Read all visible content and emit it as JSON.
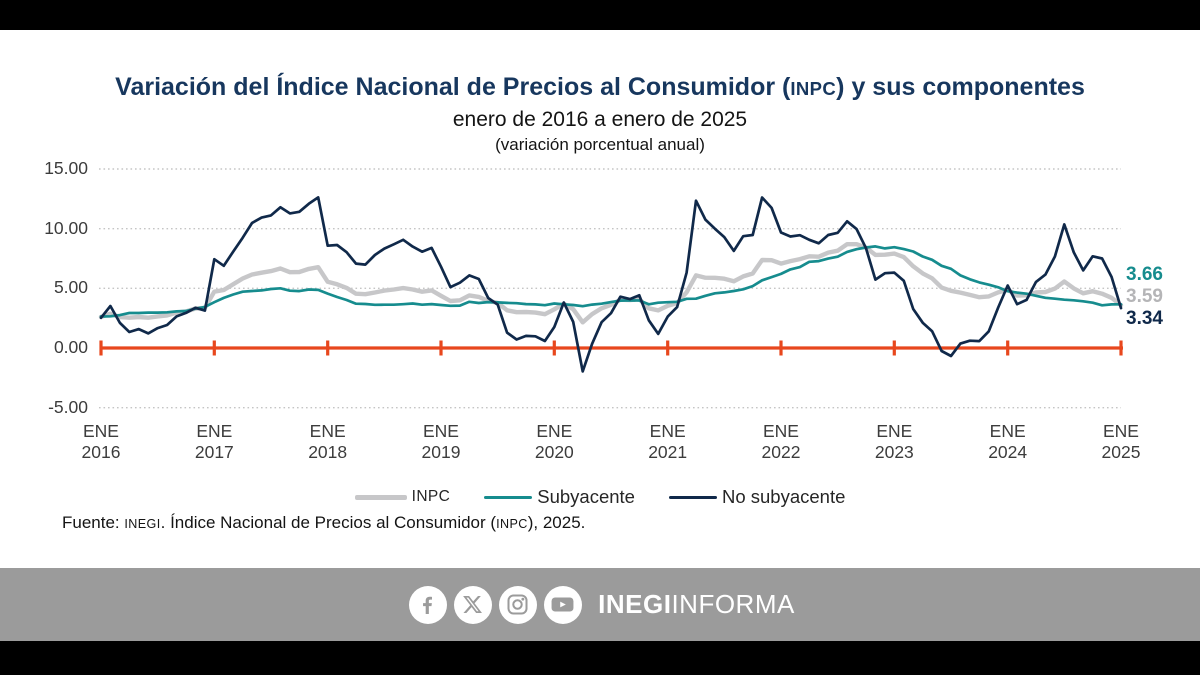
{
  "title_segments": [
    {
      "t": "Variación del Índice Nacional de Precios al Consumidor ("
    },
    {
      "t": "INPC",
      "sc": true
    },
    {
      "t": ") y sus componentes"
    }
  ],
  "subtitle": "enero de 2016 a enero de 2025",
  "note": "(variación porcentual anual)",
  "title_color": "#17375e",
  "source_segments": [
    {
      "t": "Fuente: "
    },
    {
      "t": "INEGI",
      "sc": true
    },
    {
      "t": ". Índice Nacional de Precios al Consumidor ("
    },
    {
      "t": "INPC",
      "sc": true
    },
    {
      "t": "), 2025."
    }
  ],
  "legend": {
    "items": [
      {
        "label": "INPC",
        "color": "#c7c7c9",
        "small": true
      },
      {
        "label": "Subyacente",
        "color": "#168c8e",
        "small": false
      },
      {
        "label": "No subyacente",
        "color": "#10294a",
        "small": false
      }
    ]
  },
  "footer": {
    "icons": [
      "facebook",
      "x",
      "instagram",
      "youtube"
    ],
    "brand_bold": "INEGI",
    "brand_regular": "INFORMA",
    "band_color": "#9b9b9b"
  },
  "chart_data": {
    "type": "line",
    "title": "Variación del Índice Nacional de Precios al Consumidor (INPC) y sus componentes",
    "subtitle": "enero de 2016 a enero de 2025",
    "ylabel": "variación porcentual anual",
    "frequency": "monthly",
    "x_start": "2016-01",
    "x_end": "2025-01",
    "ylim": [
      -5,
      15
    ],
    "grid": "dotted horizontal",
    "legend_position": "bottom",
    "zero_line_color": "#e8471d",
    "y_ticks": [
      {
        "label": "15.00",
        "value": 15
      },
      {
        "label": "10.00",
        "value": 10
      },
      {
        "label": "5.00",
        "value": 5
      },
      {
        "label": "0.00",
        "value": 0
      },
      {
        "label": "-5.00",
        "value": -5
      }
    ],
    "x_tick_labels": [
      {
        "line1": "ENE",
        "line2": "2016"
      },
      {
        "line1": "ENE",
        "line2": "2017"
      },
      {
        "line1": "ENE",
        "line2": "2018"
      },
      {
        "line1": "ENE",
        "line2": "2019"
      },
      {
        "line1": "ENE",
        "line2": "2020"
      },
      {
        "line1": "ENE",
        "line2": "2021"
      },
      {
        "line1": "ENE",
        "line2": "2022"
      },
      {
        "line1": "ENE",
        "line2": "2023"
      },
      {
        "line1": "ENE",
        "line2": "2024"
      },
      {
        "line1": "ENE",
        "line2": "2025"
      }
    ],
    "series": [
      {
        "name": "INPC",
        "color": "#c7c7c9",
        "width": 4.4,
        "values": [
          2.61,
          2.87,
          2.6,
          2.54,
          2.6,
          2.54,
          2.65,
          2.73,
          2.97,
          3.06,
          3.31,
          3.36,
          4.72,
          4.86,
          5.35,
          5.82,
          6.16,
          6.31,
          6.44,
          6.66,
          6.35,
          6.37,
          6.63,
          6.77,
          5.55,
          5.34,
          5.04,
          4.55,
          4.51,
          4.65,
          4.81,
          4.9,
          5.02,
          4.9,
          4.72,
          4.83,
          4.37,
          3.94,
          4.0,
          4.41,
          4.28,
          3.95,
          3.78,
          3.16,
          3.0,
          3.02,
          2.97,
          2.83,
          3.24,
          3.7,
          3.25,
          2.15,
          2.84,
          3.33,
          3.62,
          4.05,
          4.01,
          4.09,
          3.33,
          3.15,
          3.54,
          3.76,
          4.67,
          6.08,
          5.89,
          5.88,
          5.81,
          5.59,
          6.0,
          6.24,
          7.37,
          7.36,
          7.07,
          7.28,
          7.45,
          7.68,
          7.65,
          7.99,
          8.15,
          8.7,
          8.7,
          8.41,
          7.8,
          7.82,
          7.91,
          7.62,
          6.85,
          6.25,
          5.84,
          5.06,
          4.79,
          4.64,
          4.45,
          4.26,
          4.32,
          4.66,
          4.88,
          4.4,
          4.42,
          4.65,
          4.69,
          4.98,
          5.57,
          4.99,
          4.58,
          4.76,
          4.55,
          4.21,
          3.59
        ]
      },
      {
        "name": "Subyacente",
        "color": "#168c8e",
        "width": 2.7,
        "values": [
          2.64,
          2.66,
          2.76,
          2.93,
          2.93,
          2.97,
          2.97,
          2.99,
          3.07,
          3.1,
          3.29,
          3.44,
          3.84,
          4.2,
          4.48,
          4.72,
          4.78,
          4.83,
          4.94,
          5.0,
          4.8,
          4.77,
          4.9,
          4.87,
          4.56,
          4.27,
          4.02,
          3.71,
          3.69,
          3.62,
          3.63,
          3.63,
          3.67,
          3.73,
          3.63,
          3.68,
          3.6,
          3.54,
          3.55,
          3.87,
          3.77,
          3.85,
          3.82,
          3.78,
          3.75,
          3.68,
          3.65,
          3.59,
          3.73,
          3.66,
          3.6,
          3.5,
          3.64,
          3.71,
          3.85,
          3.97,
          3.99,
          3.98,
          3.66,
          3.8,
          3.84,
          3.87,
          4.12,
          4.13,
          4.37,
          4.58,
          4.66,
          4.78,
          4.92,
          5.19,
          5.67,
          5.94,
          6.21,
          6.59,
          6.78,
          7.22,
          7.28,
          7.49,
          7.65,
          8.05,
          8.28,
          8.42,
          8.51,
          8.35,
          8.45,
          8.29,
          8.09,
          7.67,
          7.39,
          6.89,
          6.64,
          6.08,
          5.76,
          5.5,
          5.3,
          5.09,
          4.76,
          4.64,
          4.55,
          4.37,
          4.21,
          4.13,
          4.05,
          4.0,
          3.91,
          3.8,
          3.58,
          3.65,
          3.66
        ]
      },
      {
        "name": "No subyacente",
        "color": "#10294a",
        "width": 2.7,
        "values": [
          2.53,
          3.52,
          2.1,
          1.34,
          1.58,
          1.22,
          1.67,
          1.93,
          2.65,
          2.94,
          3.37,
          3.13,
          7.44,
          6.89,
          8.08,
          9.24,
          10.48,
          10.93,
          11.11,
          11.79,
          11.28,
          11.41,
          12.08,
          12.62,
          8.57,
          8.63,
          8.03,
          7.07,
          6.99,
          7.79,
          8.33,
          8.69,
          9.07,
          8.5,
          8.07,
          8.39,
          6.81,
          5.1,
          5.47,
          6.08,
          5.78,
          4.19,
          3.64,
          1.28,
          0.71,
          1.01,
          0.98,
          0.59,
          1.76,
          3.81,
          2.19,
          -1.96,
          0.35,
          2.16,
          2.92,
          4.3,
          4.1,
          4.42,
          2.32,
          1.18,
          2.63,
          3.43,
          6.31,
          12.34,
          10.76,
          10.0,
          9.29,
          8.14,
          9.37,
          9.47,
          12.61,
          11.74,
          9.68,
          9.34,
          9.45,
          9.07,
          8.77,
          9.47,
          9.65,
          10.62,
          9.96,
          8.36,
          5.73,
          6.27,
          6.32,
          5.63,
          3.27,
          2.12,
          1.41,
          -0.25,
          -0.67,
          0.37,
          0.61,
          0.58,
          1.4,
          3.39,
          5.24,
          3.67,
          4.03,
          5.54,
          6.15,
          7.67,
          10.36,
          8.01,
          6.5,
          7.68,
          7.5,
          5.95,
          3.34
        ]
      }
    ],
    "end_labels": [
      {
        "label": "3.66",
        "series": "Subyacente",
        "color": "#168c8e"
      },
      {
        "label": "3.59",
        "series": "INPC",
        "color": "#b5b5b7"
      },
      {
        "label": "3.34",
        "series": "No subyacente",
        "color": "#10294a"
      }
    ]
  }
}
